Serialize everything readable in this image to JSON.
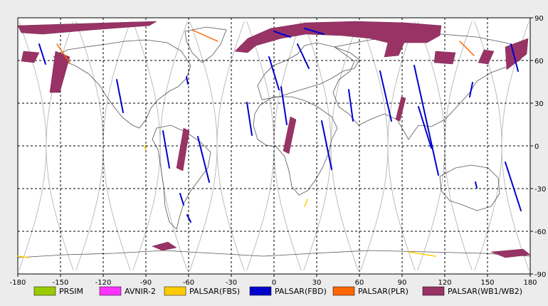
{
  "map": {
    "x_ticks": [
      "-180",
      "-150",
      "-120",
      "-90",
      "-60",
      "-30",
      "0",
      "30",
      "60",
      "90",
      "120",
      "150",
      "180"
    ],
    "y_ticks": [
      "90",
      "60",
      "30",
      "0",
      "-30",
      "-60",
      "-90"
    ],
    "colors": {
      "background": "#ececec",
      "plot_area": "#ffffff",
      "coastline": "#555555",
      "orbit_track": "#bdbdbd",
      "grid": "#000000"
    }
  },
  "legend": {
    "items": [
      {
        "label": "PRSIM",
        "color": "#99cc00"
      },
      {
        "label": "AVNIR-2",
        "color": "#ff33ff"
      },
      {
        "label": "PALSAR(FBS)",
        "color": "#ffcc00"
      },
      {
        "label": "PALSAR(FBD)",
        "color": "#0000cc"
      },
      {
        "label": "PALSAR(PLR)",
        "color": "#ff6600"
      },
      {
        "label": "PALSAR(WB1/WB2)",
        "color": "#993366"
      }
    ]
  }
}
